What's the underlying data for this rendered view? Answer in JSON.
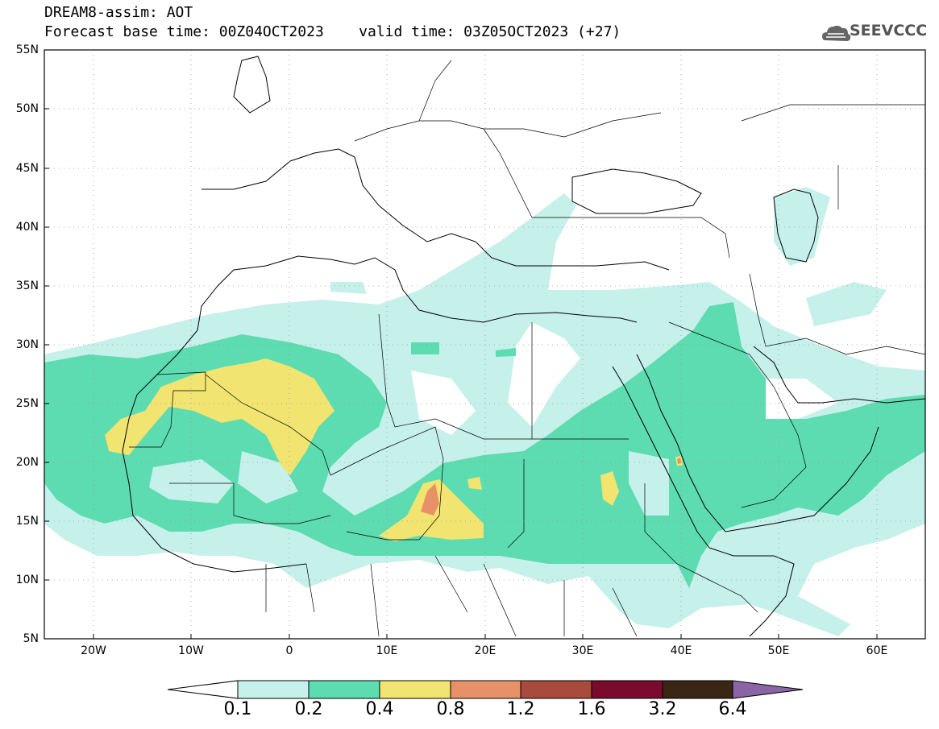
{
  "header": {
    "title_line1": "DREAM8-assim: AOT",
    "title_line2": "Forecast base time: 00Z04OCT2023    valid time: 03Z05OCT2023 (+27)",
    "logo_text": "SEEVCCC",
    "logo_icon": "cloud-icon"
  },
  "map": {
    "lat_range": [
      5,
      55
    ],
    "lon_range": [
      -25,
      65
    ],
    "lat_labels": [
      "55N",
      "50N",
      "45N",
      "40N",
      "35N",
      "30N",
      "25N",
      "20N",
      "15N",
      "10N",
      "5N"
    ],
    "lon_labels": [
      "20W",
      "10W",
      "0",
      "10E",
      "20E",
      "30E",
      "40E",
      "50E",
      "60E"
    ],
    "grid": "dotted"
  },
  "colorbar": {
    "labels": [
      "0.1",
      "0.2",
      "0.4",
      "0.8",
      "1.2",
      "1.6",
      "3.2",
      "6.4"
    ],
    "colors": [
      "#ffffff",
      "#c6f0ea",
      "#5cdcb0",
      "#f2e470",
      "#e89068",
      "#a84a3c",
      "#7a0a2e",
      "#3a2614",
      "#8a64a4"
    ]
  }
}
